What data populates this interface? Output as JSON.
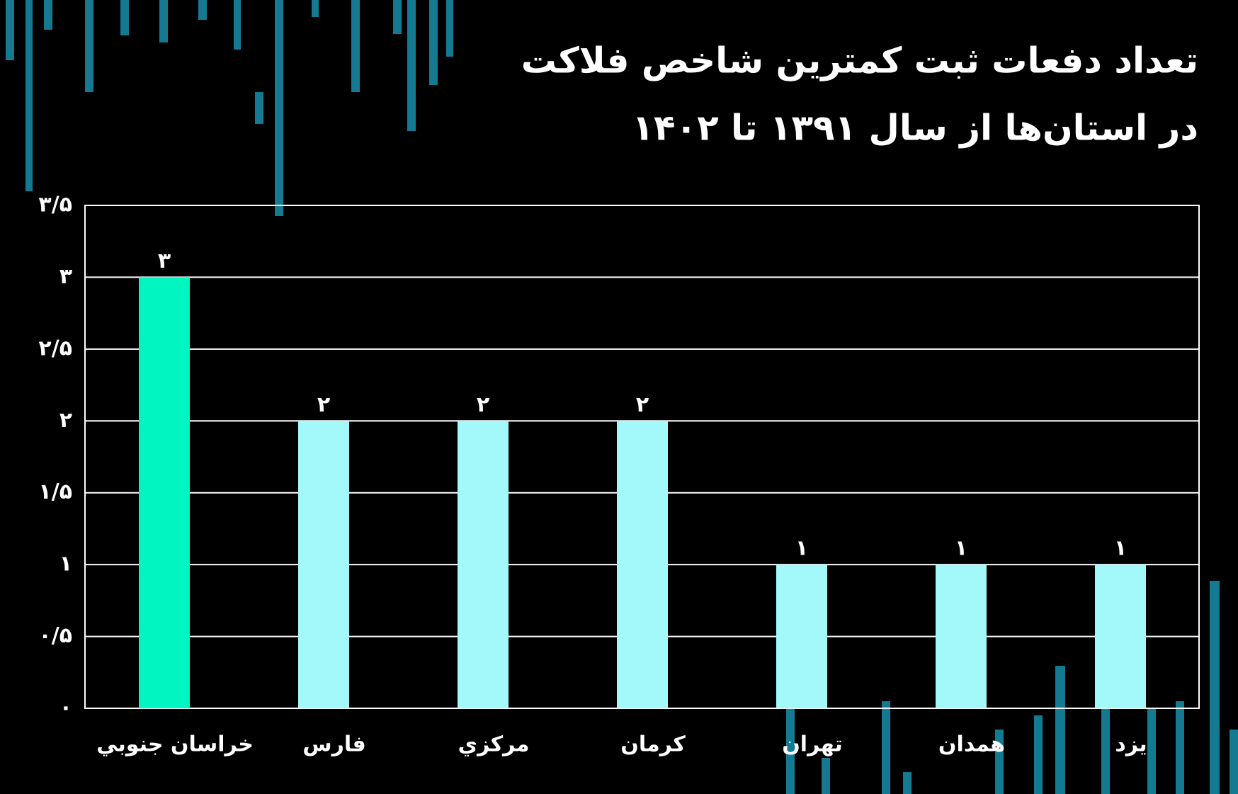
{
  "chart_data": {
    "type": "bar",
    "title": "تعداد دفعات ثبت کمترین شاخص فلاکت",
    "subtitle": "در استان‌ها از سال ۱۳۹۱ تا ۱۴۰۲",
    "categories": [
      "خراسان جنوبي",
      "فارس",
      "مرکزي",
      "کرمان",
      "تهران",
      "همدان",
      "یزد"
    ],
    "values": [
      3,
      2,
      2,
      2,
      1,
      1,
      1
    ],
    "value_labels": [
      "۳",
      "۲",
      "۲",
      "۲",
      "۱",
      "۱",
      "۱"
    ],
    "colors": [
      "#00f5c0",
      "#a3f9f9",
      "#a3f9f9",
      "#a3f9f9",
      "#a3f9f9",
      "#a3f9f9",
      "#a3f9f9"
    ],
    "ylim": [
      0,
      3.5
    ],
    "yticks": [
      {
        "value": 0,
        "label": "۰"
      },
      {
        "value": 0.5,
        "label": "۰/۵"
      },
      {
        "value": 1,
        "label": "۱"
      },
      {
        "value": 1.5,
        "label": "۱/۵"
      },
      {
        "value": 2,
        "label": "۲"
      },
      {
        "value": 2.5,
        "label": "۲/۵"
      },
      {
        "value": 3,
        "label": "۳"
      },
      {
        "value": 3.5,
        "label": "۳/۵"
      }
    ],
    "grid": true
  }
}
